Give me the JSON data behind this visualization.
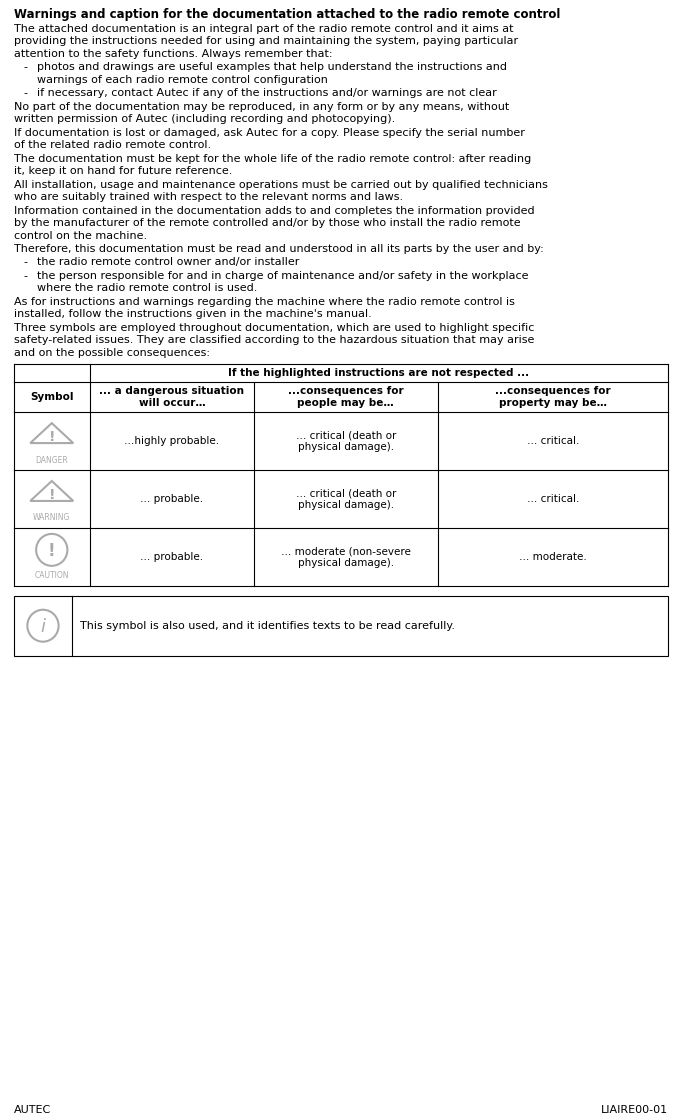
{
  "title": "Warnings and caption for the documentation attached to the radio remote control",
  "bullet1_line1": "photos and drawings are useful examples that help understand the instructions and",
  "bullet1_line2": "warnings of each radio remote control configuration",
  "bullet2_line1": "if necessary, contact Autec if any of the instructions and/or warnings are not clear",
  "bullet3_line1": "the radio remote control owner and/or installer",
  "bullet4_line1": "the person responsible for and in charge of maintenance and/or safety in the workplace",
  "bullet4_line2": "where the radio remote control is used.",
  "table_header_top": "If the highlighted instructions are not respected ...",
  "table_col0_header": "Symbol",
  "table_col1_header": "... a dangerous situation\nwill occur…",
  "table_col2_header": "...consequences for\npeople may be…",
  "table_col3_header": "...consequences for\nproperty may be…",
  "table_rows": [
    {
      "symbol": "DANGER",
      "col1": "…highly probable.",
      "col2": "… critical (death or\nphysical damage).",
      "col3": "… critical."
    },
    {
      "symbol": "WARNING",
      "col1": "… probable.",
      "col2": "… critical (death or\nphysical damage).",
      "col3": "… critical."
    },
    {
      "symbol": "CAUTION",
      "col1": "… probable.",
      "col2": "… moderate (non-severe\nphysical damage).",
      "col3": "… moderate."
    }
  ],
  "info_box_text": "This symbol is also used, and it identifies texts to be read carefully.",
  "footer_left": "AUTEC",
  "footer_right": "LIAIRE00-01",
  "bg_color": "#ffffff",
  "text_color": "#000000",
  "table_line_color": "#000000",
  "symbol_color": "#aaaaaa",
  "font_size_title": 8.5,
  "font_size_body": 8.0,
  "font_size_table": 7.5,
  "font_size_footer": 8.0
}
